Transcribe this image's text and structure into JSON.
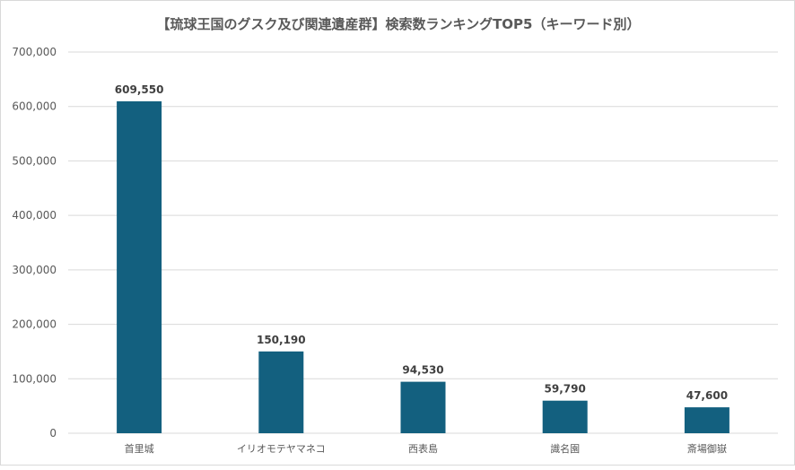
{
  "chart_data": {
    "type": "bar",
    "title": "【琉球王国のグスク及び関連遺産群】検索数ランキングTOP5（キーワード別）",
    "xlabel": "",
    "ylabel": "",
    "categories": [
      "首里城",
      "イリオモテヤマネコ",
      "西表島",
      "識名園",
      "斎場御嶽"
    ],
    "values": [
      609550,
      150190,
      94530,
      59790,
      47600
    ],
    "data_labels": [
      "609,550",
      "150,190",
      "94,530",
      "59,790",
      "47,600"
    ],
    "ylim": [
      0,
      700000
    ],
    "yticks": [
      0,
      100000,
      200000,
      300000,
      400000,
      500000,
      600000,
      700000
    ],
    "ytick_labels": [
      "0",
      "100,000",
      "200,000",
      "300,000",
      "400,000",
      "500,000",
      "600,000",
      "700,000"
    ],
    "grid": true,
    "legend": "none",
    "bar_color": "#13607f",
    "grid_color": "#d9d9d9"
  }
}
